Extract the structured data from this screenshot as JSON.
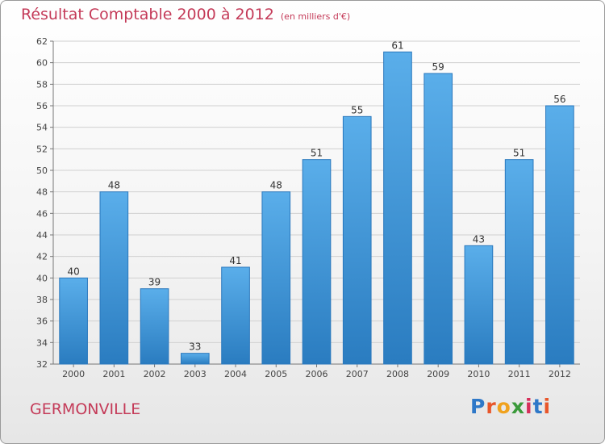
{
  "header": {
    "title": "Résultat Comptable 2000 à 2012",
    "unit": "(en milliers d'€)"
  },
  "footer": {
    "commune": "GERMONVILLE",
    "brand_letters": [
      "P",
      "r",
      "o",
      "x",
      "i",
      "t",
      "i"
    ],
    "brand_colors": [
      "#2e78c8",
      "#e8562a",
      "#f0a21e",
      "#3b9a3b",
      "#d62f5a",
      "#2e78c8",
      "#e8562a"
    ]
  },
  "chart_data": {
    "type": "bar",
    "categories": [
      "2000",
      "2001",
      "2002",
      "2003",
      "2004",
      "2005",
      "2006",
      "2007",
      "2008",
      "2009",
      "2010",
      "2011",
      "2012"
    ],
    "values": [
      40,
      48,
      39,
      33,
      41,
      48,
      51,
      55,
      61,
      59,
      43,
      51,
      56
    ],
    "ylim": [
      32,
      62
    ],
    "yticks": [
      32,
      34,
      36,
      38,
      40,
      42,
      44,
      46,
      48,
      50,
      52,
      54,
      56,
      58,
      60,
      62
    ],
    "grid": true,
    "bar_color_top": "#5aaeea",
    "bar_color_bottom": "#2a7cc0",
    "title_color": "#c43a58"
  }
}
